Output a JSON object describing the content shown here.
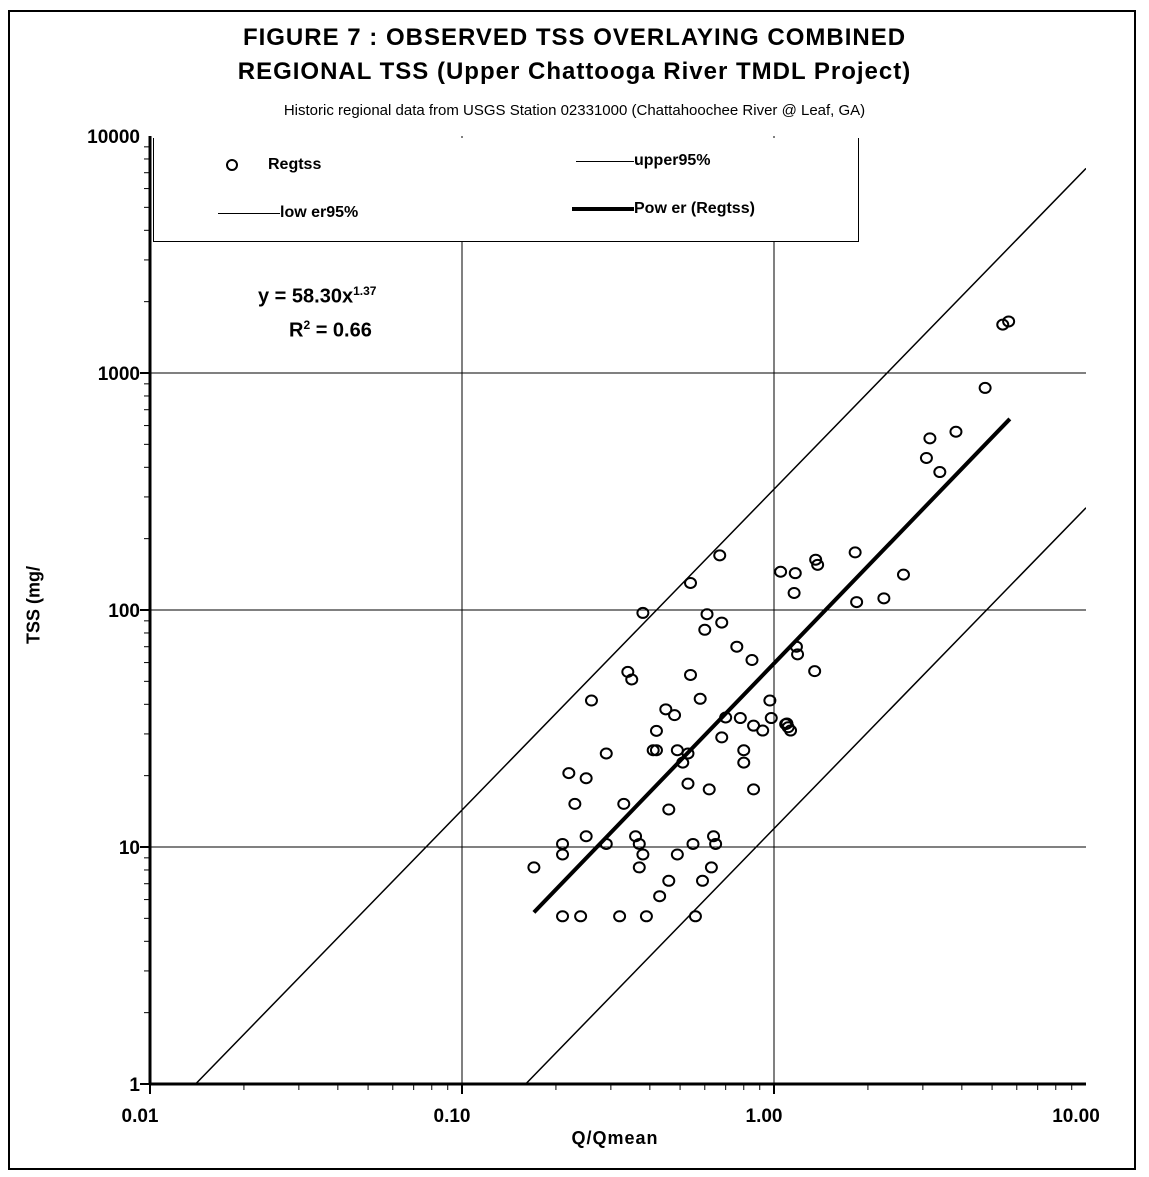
{
  "chart_data": {
    "type": "scatter",
    "title": "FIGURE 7 : OBSERVED TSS OVERLAYING COMBINED REGIONAL TSS (Upper Chattooga River TMDL Project)",
    "title_line1": "FIGURE 7 : OBSERVED TSS OVERLAYING COMBINED",
    "title_line2": "REGIONAL TSS (Upper Chattooga River TMDL Project)",
    "subtitle": "Historic regional data from USGS Station 02331000 (Chattahoochee River @ Leaf, GA)",
    "xlabel": "Q/Qmean",
    "ylabel": "TSS (mg/",
    "x_scale": "log",
    "y_scale": "log",
    "xlim": [
      0.01,
      10
    ],
    "ylim": [
      1,
      10000
    ],
    "x_ticks": [
      "0.01",
      "0.10",
      "1.00",
      "10.00"
    ],
    "y_ticks": [
      "1",
      "10",
      "100",
      "1000",
      "10000"
    ],
    "grid": true,
    "legend_position": "top",
    "legend": {
      "regtss": "Regtss",
      "upper95": "upper95%",
      "lower95": "low er95%",
      "power": "Pow er (Regtss)"
    },
    "equation": "y = 58.30x",
    "equation_exponent": "1.37",
    "r2_label": "R",
    "r2_sup": "2",
    "r2_value": " = 0.66",
    "series": [
      {
        "name": "Regtss",
        "kind": "points",
        "points": [
          [
            0.17,
            8.2
          ],
          [
            0.21,
            5.1
          ],
          [
            0.21,
            9.3
          ],
          [
            0.21,
            10.3
          ],
          [
            0.22,
            20.5
          ],
          [
            0.23,
            15.2
          ],
          [
            0.24,
            5.1
          ],
          [
            0.25,
            19.5
          ],
          [
            0.25,
            11.1
          ],
          [
            0.26,
            41.5
          ],
          [
            0.29,
            24.8
          ],
          [
            0.29,
            10.3
          ],
          [
            0.32,
            5.1
          ],
          [
            0.33,
            15.2
          ],
          [
            0.34,
            54.8
          ],
          [
            0.35,
            50.9
          ],
          [
            0.36,
            11.1
          ],
          [
            0.37,
            8.2
          ],
          [
            0.37,
            10.3
          ],
          [
            0.38,
            9.3
          ],
          [
            0.38,
            97.2
          ],
          [
            0.39,
            5.1
          ],
          [
            0.41,
            25.6
          ],
          [
            0.42,
            25.6
          ],
          [
            0.42,
            30.9
          ],
          [
            0.43,
            6.2
          ],
          [
            0.45,
            38.1
          ],
          [
            0.46,
            14.4
          ],
          [
            0.46,
            7.2
          ],
          [
            0.48,
            36.0
          ],
          [
            0.49,
            25.6
          ],
          [
            0.49,
            9.3
          ],
          [
            0.51,
            22.7
          ],
          [
            0.53,
            18.5
          ],
          [
            0.53,
            24.8
          ],
          [
            0.54,
            53.2
          ],
          [
            0.54,
            130.0
          ],
          [
            0.55,
            10.3
          ],
          [
            0.56,
            5.1
          ],
          [
            0.58,
            42.2
          ],
          [
            0.59,
            7.2
          ],
          [
            0.6,
            82.5
          ],
          [
            0.61,
            96.0
          ],
          [
            0.62,
            17.5
          ],
          [
            0.63,
            8.2
          ],
          [
            0.64,
            11.1
          ],
          [
            0.65,
            10.3
          ],
          [
            0.67,
            170.0
          ],
          [
            0.68,
            88.5
          ],
          [
            0.68,
            29.0
          ],
          [
            0.7,
            35.2
          ],
          [
            0.76,
            70.0
          ],
          [
            0.78,
            35.0
          ],
          [
            0.8,
            25.6
          ],
          [
            0.8,
            22.7
          ],
          [
            0.85,
            61.5
          ],
          [
            0.86,
            17.5
          ],
          [
            0.86,
            32.5
          ],
          [
            0.92,
            31.0
          ],
          [
            0.97,
            41.5
          ],
          [
            0.98,
            35.0
          ],
          [
            1.05,
            145.0
          ],
          [
            1.09,
            33.0
          ],
          [
            1.1,
            33.2
          ],
          [
            1.11,
            32.0
          ],
          [
            1.13,
            31.0
          ],
          [
            1.16,
            118.0
          ],
          [
            1.17,
            143.0
          ],
          [
            1.18,
            70.0
          ],
          [
            1.19,
            65.0
          ],
          [
            1.35,
            55.2
          ],
          [
            1.36,
            163.0
          ],
          [
            1.38,
            155.0
          ],
          [
            1.82,
            175.0
          ],
          [
            1.84,
            108.0
          ],
          [
            2.25,
            112.0
          ],
          [
            2.6,
            141.0
          ],
          [
            3.08,
            438.0
          ],
          [
            3.16,
            530.0
          ],
          [
            3.4,
            382.0
          ],
          [
            3.83,
            565.0
          ],
          [
            4.75,
            865.0
          ],
          [
            5.41,
            1600.0
          ],
          [
            5.65,
            1650.0
          ]
        ]
      },
      {
        "name": "upper95%",
        "kind": "line",
        "points": [
          [
            0.014,
            1.0
          ],
          [
            10.0,
            7300.0
          ]
        ]
      },
      {
        "name": "low er95%",
        "kind": "line",
        "points": [
          [
            0.16,
            1.0
          ],
          [
            10.0,
            270.0
          ]
        ]
      },
      {
        "name": "Pow er (Regtss)",
        "kind": "fit",
        "points": [
          [
            0.17,
            5.3
          ],
          [
            5.7,
            640.0
          ]
        ]
      }
    ]
  }
}
